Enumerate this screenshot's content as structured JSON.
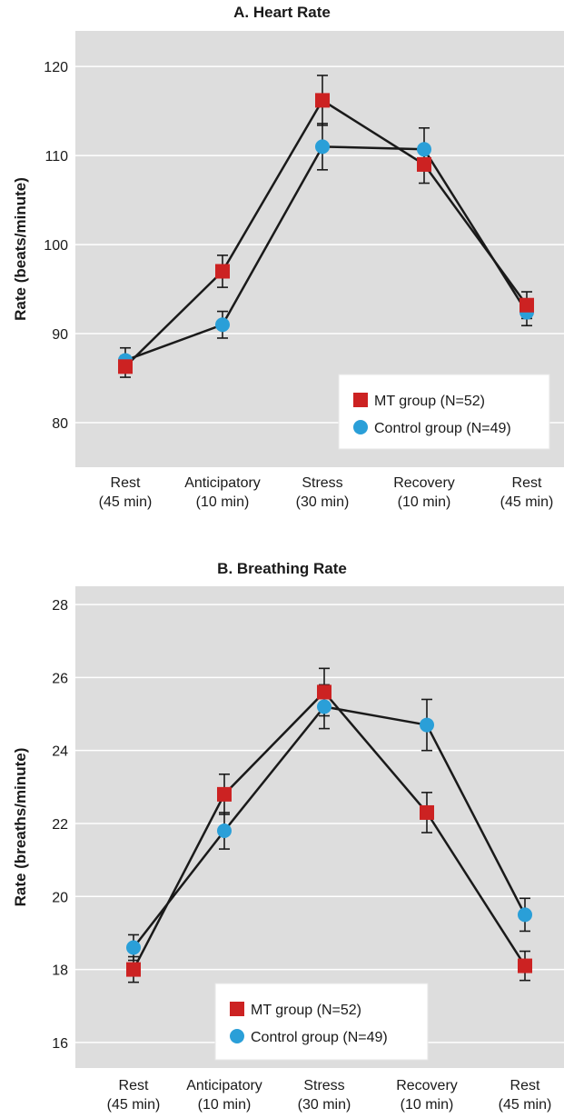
{
  "chart_data": [
    {
      "type": "line",
      "title": "A. Heart Rate",
      "xlabel": "",
      "ylabel": "Rate (beats/minute)",
      "ylim": [
        75,
        124
      ],
      "yticks": [
        80,
        90,
        100,
        110,
        120
      ],
      "categories": [
        [
          "Rest",
          "(45 min)"
        ],
        [
          "Anticipatory",
          "(10 min)"
        ],
        [
          "Stress",
          "(30 min)"
        ],
        [
          "Recovery",
          "(10 min)"
        ],
        [
          "Rest",
          "(45 min)"
        ]
      ],
      "grid": true,
      "legend_position": "bottom-right",
      "series": [
        {
          "name": "MT group (N=52)",
          "marker": "square",
          "color": "#cc2222",
          "values": [
            86.3,
            97.0,
            116.2,
            109.0,
            93.2
          ],
          "error": [
            1.2,
            1.8,
            2.8,
            2.1,
            1.5
          ]
        },
        {
          "name": "Control group (N=49)",
          "marker": "circle",
          "color": "#2a9fd8",
          "values": [
            87.0,
            91.0,
            111.0,
            110.7,
            92.4
          ],
          "error": [
            1.4,
            1.5,
            2.6,
            2.4,
            1.5
          ]
        }
      ]
    },
    {
      "type": "line",
      "title": "B. Breathing Rate",
      "xlabel": "",
      "ylabel": "Rate (breaths/minute)",
      "ylim": [
        15.3,
        28.5
      ],
      "yticks": [
        16,
        18,
        20,
        22,
        24,
        26,
        28
      ],
      "categories": [
        [
          "Rest",
          "(45 min)"
        ],
        [
          "Anticipatory",
          "(10 min)"
        ],
        [
          "Stress",
          "(30 min)"
        ],
        [
          "Recovery",
          "(10 min)"
        ],
        [
          "Rest",
          "(45 min)"
        ]
      ],
      "grid": true,
      "legend_position": "bottom-center",
      "series": [
        {
          "name": "MT group (N=52)",
          "marker": "square",
          "color": "#cc2222",
          "values": [
            18.0,
            22.8,
            25.6,
            22.3,
            18.1
          ],
          "error": [
            0.35,
            0.55,
            0.65,
            0.55,
            0.4
          ]
        },
        {
          "name": "Control group (N=49)",
          "marker": "circle",
          "color": "#2a9fd8",
          "values": [
            18.6,
            21.8,
            25.2,
            24.7,
            19.5
          ],
          "error": [
            0.35,
            0.5,
            0.6,
            0.7,
            0.45
          ]
        }
      ]
    }
  ],
  "colors": {
    "plot_background": "#dddddd",
    "grid": "#ffffff",
    "line": "#1a1a1a"
  }
}
